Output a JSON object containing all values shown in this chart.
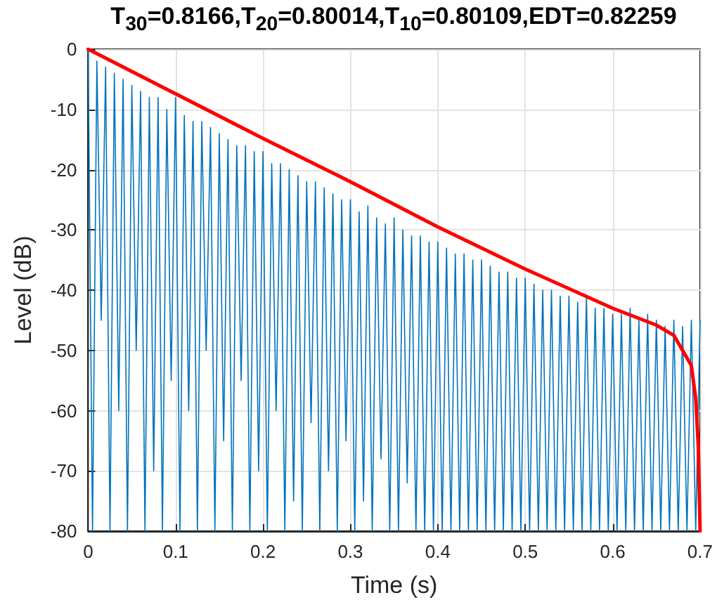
{
  "chart_data": {
    "type": "line",
    "title": "T$_{30}$=0.8166,T$_{20}$=0.80014,T$_{10}$=0.80109,EDT=0.82259",
    "xlabel": "Time (s)",
    "ylabel": "Level (dB)",
    "xlim": [
      0,
      0.7
    ],
    "xticks": [
      0,
      0.1,
      0.2,
      0.3,
      0.4,
      0.5,
      0.6,
      0.7
    ],
    "ylim": [
      -80,
      0
    ],
    "yticks": [
      -80,
      -70,
      -60,
      -50,
      -40,
      -30,
      -20,
      -10,
      0
    ],
    "grid": true,
    "marker": "none",
    "line_style": "solid",
    "series": [
      {
        "color": "#0072bd",
        "x": [
          0,
          0.005,
          0.01,
          0.015,
          0.02,
          0.025,
          0.03,
          0.035,
          0.04,
          0.045,
          0.05,
          0.055,
          0.06,
          0.065,
          0.07,
          0.075,
          0.08,
          0.085,
          0.09,
          0.095,
          0.1,
          0.105,
          0.11,
          0.115,
          0.12,
          0.125,
          0.13,
          0.135,
          0.14,
          0.145,
          0.15,
          0.155,
          0.16,
          0.165,
          0.17,
          0.175,
          0.18,
          0.185,
          0.19,
          0.195,
          0.2,
          0.205,
          0.21,
          0.215,
          0.22,
          0.225,
          0.23,
          0.235,
          0.24,
          0.245,
          0.25,
          0.255,
          0.26,
          0.265,
          0.27,
          0.275,
          0.28,
          0.285,
          0.29,
          0.295,
          0.3,
          0.305,
          0.31,
          0.315,
          0.32,
          0.325,
          0.33,
          0.335,
          0.34,
          0.345,
          0.35,
          0.355,
          0.36,
          0.365,
          0.37,
          0.375,
          0.38,
          0.385,
          0.39,
          0.395,
          0.4,
          0.405,
          0.41,
          0.415,
          0.42,
          0.425,
          0.43,
          0.435,
          0.44,
          0.445,
          0.45,
          0.455,
          0.46,
          0.465,
          0.47,
          0.475,
          0.48,
          0.485,
          0.49,
          0.495,
          0.5,
          0.505,
          0.51,
          0.515,
          0.52,
          0.525,
          0.53,
          0.535,
          0.54,
          0.545,
          0.55,
          0.555,
          0.56,
          0.565,
          0.57,
          0.575,
          0.58,
          0.585,
          0.59,
          0.595,
          0.6,
          0.605,
          0.61,
          0.615,
          0.62,
          0.625,
          0.63,
          0.635,
          0.64,
          0.645,
          0.65,
          0.655,
          0.66,
          0.665,
          0.67,
          0.675,
          0.68,
          0.685,
          0.69,
          0.695,
          0.7
        ],
        "values": [
          0,
          -80,
          -2,
          -45,
          -3,
          -80,
          -4,
          -60,
          -5,
          -80,
          -6,
          -50,
          -7,
          -80,
          -8,
          -70,
          -8,
          -80,
          -10,
          -55,
          -8,
          -80,
          -11,
          -60,
          -12,
          -80,
          -12,
          -50,
          -13,
          -80,
          -14,
          -65,
          -15,
          -80,
          -16,
          -55,
          -16,
          -80,
          -17,
          -70,
          -17,
          -80,
          -19,
          -60,
          -19,
          -80,
          -20,
          -75,
          -21,
          -80,
          -22,
          -62,
          -22,
          -80,
          -23,
          -70,
          -24,
          -80,
          -25,
          -65,
          -25,
          -80,
          -27,
          -75,
          -26,
          -80,
          -28,
          -68,
          -29,
          -80,
          -28,
          -80,
          -30,
          -72,
          -31,
          -80,
          -31,
          -80,
          -32,
          -80,
          -32,
          -80,
          -33,
          -80,
          -34,
          -80,
          -34,
          -80,
          -35,
          -80,
          -35,
          -80,
          -36,
          -80,
          -37,
          -80,
          -37,
          -80,
          -38,
          -80,
          -38,
          -80,
          -39,
          -80,
          -40,
          -80,
          -40,
          -80,
          -41,
          -80,
          -41,
          -80,
          -42,
          -80,
          -41,
          -80,
          -43,
          -80,
          -43,
          -80,
          -44,
          -80,
          -44,
          -80,
          -43,
          -80,
          -45,
          -80,
          -44,
          -80,
          -45,
          -80,
          -46,
          -80,
          -45,
          -80,
          -46,
          -80,
          -45,
          -80,
          -45
        ]
      },
      {
        "color": "#ff0000",
        "x": [
          0,
          0.1,
          0.2,
          0.3,
          0.4,
          0.5,
          0.6,
          0.65,
          0.67,
          0.68,
          0.69,
          0.695,
          0.698,
          0.7
        ],
        "values": [
          0,
          -7.4,
          -14.8,
          -22,
          -29.5,
          -36.5,
          -43,
          -45.8,
          -47.5,
          -50,
          -52.5,
          -58,
          -66,
          -80
        ]
      }
    ]
  }
}
